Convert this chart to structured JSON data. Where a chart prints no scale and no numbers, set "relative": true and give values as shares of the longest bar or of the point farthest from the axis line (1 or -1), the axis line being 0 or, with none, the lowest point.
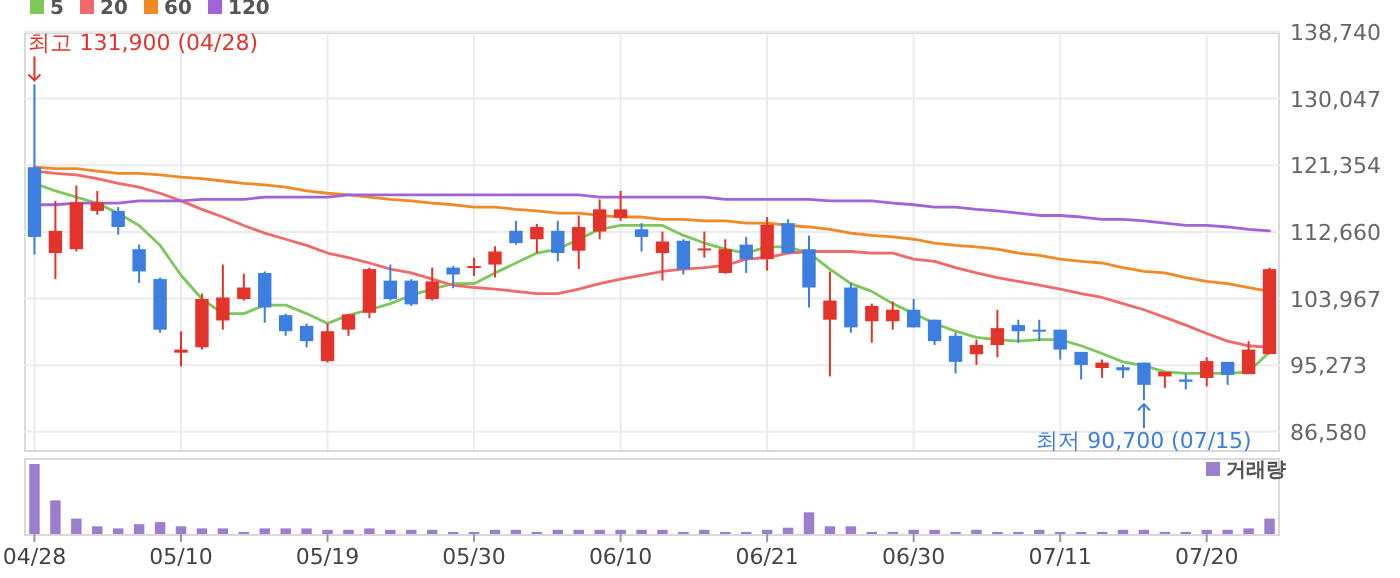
{
  "chart_data": [
    {
      "type": "candlestick",
      "categories": [
        "04/28",
        null,
        null,
        null,
        null,
        null,
        null,
        "05/10",
        null,
        null,
        null,
        null,
        null,
        null,
        "05/19",
        null,
        null,
        null,
        null,
        null,
        null,
        "05/30",
        null,
        null,
        null,
        null,
        null,
        null,
        "06/10",
        null,
        null,
        null,
        null,
        null,
        null,
        "06/21",
        null,
        null,
        null,
        null,
        null,
        null,
        "06/30",
        null,
        null,
        null,
        null,
        null,
        null,
        "07/11",
        null,
        null,
        null,
        null,
        null,
        null,
        "07/20",
        null,
        null,
        null
      ],
      "ohlc": [
        [
          121100,
          131900,
          109700,
          112000
        ],
        [
          109900,
          116700,
          106500,
          112800
        ],
        [
          110400,
          118700,
          110100,
          116500
        ],
        [
          115400,
          118000,
          114900,
          116500
        ],
        [
          115400,
          115900,
          112300,
          113300
        ],
        [
          110400,
          111000,
          106000,
          107500
        ],
        [
          106500,
          106700,
          99500,
          99900
        ],
        [
          96900,
          99700,
          95100,
          97300
        ],
        [
          97600,
          104600,
          97300,
          103900
        ],
        [
          101100,
          108400,
          99900,
          104100
        ],
        [
          103900,
          107200,
          103700,
          105400
        ],
        [
          107300,
          107500,
          100800,
          102800
        ],
        [
          101800,
          102000,
          99100,
          99700
        ],
        [
          100400,
          100700,
          97600,
          98400
        ],
        [
          95800,
          100700,
          95600,
          99700
        ],
        [
          99900,
          101900,
          99100,
          101900
        ],
        [
          102100,
          108000,
          101400,
          107800
        ],
        [
          106300,
          108400,
          103700,
          103900
        ],
        [
          106300,
          106500,
          103000,
          103200
        ],
        [
          103900,
          108000,
          103700,
          106200
        ],
        [
          108000,
          108200,
          105300,
          107100
        ],
        [
          108000,
          109300,
          106900,
          108200
        ],
        [
          108400,
          110800,
          106700,
          110100
        ],
        [
          112800,
          114100,
          111000,
          111200
        ],
        [
          111700,
          113700,
          109900,
          113300
        ],
        [
          112800,
          114100,
          108800,
          109900
        ],
        [
          110200,
          114800,
          107800,
          113300
        ],
        [
          112700,
          116900,
          111700,
          115600
        ],
        [
          114500,
          118000,
          114100,
          115600
        ],
        [
          113000,
          113800,
          110100,
          112000
        ],
        [
          109900,
          112700,
          106300,
          111400
        ],
        [
          111500,
          111700,
          107100,
          107800
        ],
        [
          110300,
          112700,
          109300,
          110500
        ],
        [
          107300,
          111700,
          107200,
          110400
        ],
        [
          111000,
          112000,
          107300,
          109100
        ],
        [
          109100,
          114600,
          107600,
          113600
        ],
        [
          113800,
          114300,
          109800,
          109900
        ],
        [
          110400,
          112200,
          102800,
          105400
        ],
        [
          101200,
          107500,
          93800,
          103700
        ],
        [
          105400,
          106000,
          99500,
          100200
        ],
        [
          101000,
          103300,
          98200,
          103000
        ],
        [
          101000,
          103600,
          99900,
          102500
        ],
        [
          102500,
          103900,
          100200,
          100200
        ],
        [
          101200,
          101200,
          97900,
          98400
        ],
        [
          99100,
          99500,
          94200,
          95700
        ],
        [
          96700,
          98600,
          95300,
          97900
        ],
        [
          97900,
          102500,
          96300,
          100100
        ],
        [
          100500,
          101200,
          98200,
          99700
        ],
        [
          99900,
          101200,
          98400,
          99700
        ],
        [
          99900,
          99900,
          96000,
          97300
        ],
        [
          97000,
          97000,
          93400,
          95300
        ],
        [
          94900,
          96000,
          93600,
          95600
        ],
        [
          95000,
          95300,
          93600,
          94600
        ],
        [
          95600,
          95600,
          90700,
          92700
        ],
        [
          93800,
          94400,
          92300,
          94400
        ],
        [
          93400,
          94100,
          92100,
          93100
        ],
        [
          93600,
          96300,
          92500,
          95800
        ],
        [
          95700,
          95700,
          92700,
          94000
        ],
        [
          94100,
          98400,
          94100,
          97300
        ],
        [
          96700,
          108000,
          96700,
          107800
        ]
      ],
      "colors": [
        "#3d7fe0",
        "#e3342b",
        "#e3342b",
        "#e3342b",
        "#3d7fe0",
        "#3d7fe0",
        "#3d7fe0",
        "#e3342b",
        "#e3342b",
        "#e3342b",
        "#e3342b",
        "#3d7fe0",
        "#3d7fe0",
        "#3d7fe0",
        "#e3342b",
        "#e3342b",
        "#e3342b",
        "#3d7fe0",
        "#3d7fe0",
        "#e3342b",
        "#3d7fe0",
        "#e3342b",
        "#e3342b",
        "#3d7fe0",
        "#e3342b",
        "#3d7fe0",
        "#e3342b",
        "#e3342b",
        "#e3342b",
        "#3d7fe0",
        "#e3342b",
        "#3d7fe0",
        "#e3342b",
        "#e3342b",
        "#3d7fe0",
        "#e3342b",
        "#3d7fe0",
        "#3d7fe0",
        "#e3342b",
        "#3d7fe0",
        "#e3342b",
        "#e3342b",
        "#3d7fe0",
        "#3d7fe0",
        "#3d7fe0",
        "#e3342b",
        "#e3342b",
        "#3d7fe0",
        "#3d7fe0",
        "#3d7fe0",
        "#3d7fe0",
        "#e3342b",
        "#3d7fe0",
        "#3d7fe0",
        "#e3342b",
        "#3d7fe0",
        "#e3342b",
        "#3d7fe0",
        "#e3342b",
        "#e3342b"
      ],
      "series": [
        {
          "name": "5",
          "type": "line",
          "color": "#7cc85a",
          "values": [
            119000,
            118000,
            117200,
            116400,
            115100,
            113500,
            110900,
            107000,
            103900,
            102000,
            102000,
            103100,
            103100,
            102000,
            100700,
            101800,
            102500,
            103300,
            104400,
            105200,
            105900,
            105900,
            107300,
            108600,
            109900,
            110400,
            111700,
            113000,
            113500,
            113500,
            113500,
            112200,
            111200,
            110400,
            109900,
            110700,
            110700,
            109900,
            107800,
            105900,
            104900,
            103300,
            102000,
            100700,
            99700,
            98900,
            98600,
            98400,
            98600,
            98600,
            97800,
            96800,
            95700,
            95200,
            94400,
            94200,
            94200,
            94200,
            94400,
            97000
          ]
        },
        {
          "name": "20",
          "type": "line",
          "color": "#f06a6a",
          "values": [
            120600,
            120300,
            120100,
            119600,
            119000,
            118500,
            117700,
            116700,
            115600,
            114600,
            113500,
            112500,
            111700,
            110900,
            109900,
            109300,
            108600,
            107800,
            107300,
            106500,
            105700,
            105400,
            105200,
            104900,
            104600,
            104600,
            105200,
            105900,
            106500,
            107000,
            107500,
            107800,
            108000,
            108300,
            109100,
            109300,
            109900,
            110100,
            110100,
            110100,
            109900,
            109900,
            109100,
            108800,
            108000,
            107300,
            106700,
            106200,
            105700,
            105200,
            104600,
            104100,
            103300,
            102500,
            101500,
            100500,
            99400,
            98400,
            97800,
            97600
          ]
        },
        {
          "name": "60",
          "type": "line",
          "color": "#f08a24",
          "values": [
            121100,
            120900,
            120900,
            120600,
            120300,
            120300,
            120100,
            119800,
            119600,
            119300,
            119000,
            118800,
            118500,
            118000,
            117700,
            117500,
            117200,
            116900,
            116700,
            116400,
            116200,
            115900,
            115900,
            115600,
            115400,
            115100,
            115100,
            114800,
            114600,
            114600,
            114300,
            114300,
            114100,
            114100,
            113800,
            113800,
            113500,
            113300,
            113000,
            112500,
            112200,
            112000,
            111700,
            111200,
            110900,
            110700,
            110400,
            109900,
            109600,
            109100,
            108800,
            108600,
            108000,
            107500,
            107300,
            106700,
            106200,
            105900,
            105400,
            104900
          ]
        },
        {
          "name": "120",
          "type": "line",
          "color": "#a064d8",
          "values": [
            116200,
            116200,
            116400,
            116400,
            116400,
            116700,
            116700,
            116700,
            116900,
            116900,
            116900,
            117200,
            117200,
            117200,
            117200,
            117500,
            117500,
            117500,
            117500,
            117500,
            117500,
            117500,
            117500,
            117500,
            117500,
            117500,
            117500,
            117200,
            117200,
            117200,
            117200,
            117200,
            117200,
            116900,
            116900,
            116900,
            116900,
            116900,
            116700,
            116700,
            116700,
            116400,
            116200,
            115900,
            115900,
            115600,
            115400,
            115100,
            114800,
            114800,
            114600,
            114300,
            114300,
            114100,
            113800,
            113500,
            113500,
            113300,
            113000,
            112800
          ]
        }
      ],
      "ylim": [
        84200,
        138740
      ],
      "yticks": [
        {
          "value": 86580,
          "label": "86,580"
        },
        {
          "value": 95273,
          "label": "95,273"
        },
        {
          "value": 103967,
          "label": "103,967"
        },
        {
          "value": 112660,
          "label": "112,660"
        },
        {
          "value": 121354,
          "label": "121,354"
        },
        {
          "value": 130047,
          "label": "130,047"
        },
        {
          "value": 138740,
          "label": "138,740"
        }
      ],
      "tick_labels": "y",
      "grid": true,
      "legend": "top left",
      "annotations": [
        {
          "text": "최고 131,900 (04/28)",
          "x": "04/28",
          "y": 131900
        },
        {
          "text": "최저 90,700 (07/15)",
          "y": 90700
        }
      ]
    },
    {
      "type": "bar",
      "categories": [
        "04/28",
        null,
        null,
        null,
        null,
        null,
        null,
        "05/10",
        null,
        null,
        null,
        null,
        null,
        null,
        "05/19",
        null,
        null,
        null,
        null,
        null,
        null,
        "05/30",
        null,
        null,
        null,
        null,
        null,
        null,
        "06/10",
        null,
        null,
        null,
        null,
        null,
        null,
        "06/21",
        null,
        null,
        null,
        null,
        null,
        null,
        "06/30",
        null,
        null,
        null,
        null,
        null,
        null,
        "07/11",
        null,
        null,
        null,
        null,
        null,
        null,
        "07/20",
        null,
        null,
        null
      ],
      "relative": true,
      "series": [
        {
          "name": "거래량",
          "color": "#9b7fcc",
          "values": [
            1,
            0.48,
            0.22,
            0.11,
            0.08,
            0.14,
            0.17,
            0.11,
            0.08,
            0.08,
            0.03,
            0.08,
            0.08,
            0.08,
            0.06,
            0.06,
            0.08,
            0.06,
            0.06,
            0.06,
            0.03,
            0.03,
            0.06,
            0.06,
            0.03,
            0.06,
            0.06,
            0.06,
            0.06,
            0.06,
            0.06,
            0.03,
            0.06,
            0.03,
            0.03,
            0.06,
            0.09,
            0.31,
            0.11,
            0.11,
            0.03,
            0.03,
            0.06,
            0.06,
            0.03,
            0.06,
            0.03,
            0.03,
            0.06,
            0.03,
            0.03,
            0.03,
            0.06,
            0.06,
            0.03,
            0.03,
            0.06,
            0.06,
            0.08,
            0.22
          ]
        }
      ],
      "tick_labels": "x",
      "legend": "top right"
    }
  ]
}
